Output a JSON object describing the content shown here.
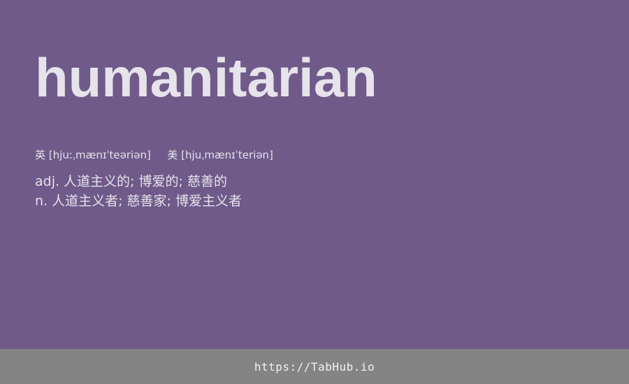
{
  "word": "humanitarian",
  "phonetics": {
    "uk_label": "英",
    "uk": "[hjuːˌmænɪˈteəriən]",
    "us_label": "美",
    "us": "[hjuˌmænɪˈteriən]"
  },
  "definitions": [
    {
      "text": "adj. 人道主义的; 博爱的; 慈善的"
    },
    {
      "text": "n. 人道主义者; 慈善家; 博爱主义者"
    }
  ],
  "footer": {
    "url": "https://TabHub.io"
  },
  "colors": {
    "background": "#6f5a8a",
    "text": "#e6e3ea",
    "footer_bg": "#848484",
    "footer_text": "#f2f2f2"
  }
}
